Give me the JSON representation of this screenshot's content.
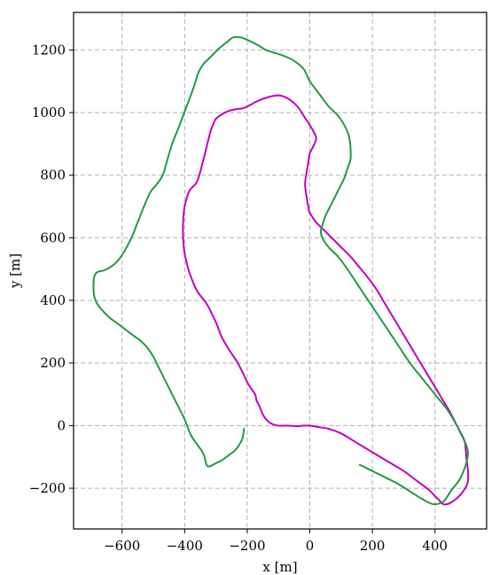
{
  "chart_data": {
    "type": "line",
    "xlabel": "x [m]",
    "ylabel": "y [m]",
    "xlim": [
      -755,
      565
    ],
    "ylim": [
      -330,
      1320
    ],
    "grid": true,
    "xticks": [
      -600,
      -400,
      -200,
      0,
      200,
      400
    ],
    "yticks": [
      -200,
      0,
      200,
      400,
      600,
      800,
      1000,
      1200
    ],
    "tick_labels_x": [
      "−600",
      "−400",
      "−200",
      "0",
      "200",
      "400"
    ],
    "tick_labels_y": [
      "−200",
      "0",
      "200",
      "400",
      "600",
      "800",
      "1000",
      "1200"
    ],
    "series": [
      {
        "color": "#c000c0",
        "x": [
          0,
          30,
          60,
          100,
          150,
          200,
          250,
          300,
          340,
          380,
          410,
          430,
          460,
          490,
          505,
          505,
          500,
          495,
          480,
          450,
          420,
          390,
          360,
          330,
          300,
          270,
          240,
          210,
          180,
          155,
          130,
          100,
          70,
          45,
          20,
          0,
          -5,
          -10,
          -15,
          -10,
          -5,
          0,
          10,
          20,
          0,
          -20,
          -40,
          -70,
          -100,
          -130,
          -160,
          -180,
          -210,
          -240,
          -260,
          -280,
          -300,
          -310,
          -320,
          -340,
          -360,
          -385,
          -400,
          -405,
          -405,
          -400,
          -385,
          -360,
          -330,
          -300,
          -280,
          -250,
          -230,
          -210,
          -195,
          -175,
          -170,
          -160,
          -150,
          -135,
          -120,
          -100,
          -70,
          -40,
          -20,
          0
        ],
        "y": [
          0,
          -5,
          -10,
          -25,
          -55,
          -85,
          -115,
          -145,
          -175,
          -205,
          -235,
          -252,
          -240,
          -210,
          -180,
          -140,
          -100,
          -50,
          -20,
          40,
          90,
          140,
          190,
          240,
          290,
          340,
          390,
          440,
          480,
          510,
          540,
          570,
          600,
          625,
          650,
          680,
          700,
          730,
          770,
          810,
          840,
          870,
          890,
          920,
          960,
          990,
          1020,
          1045,
          1055,
          1050,
          1040,
          1030,
          1015,
          1010,
          1005,
          995,
          980,
          960,
          930,
          850,
          780,
          750,
          700,
          650,
          600,
          550,
          490,
          430,
          390,
          330,
          280,
          230,
          200,
          160,
          130,
          100,
          80,
          60,
          35,
          15,
          5,
          0,
          0,
          -2,
          0,
          0
        ]
      },
      {
        "color": "#229944",
        "x": [
          -210,
          -215,
          -225,
          -240,
          -260,
          -280,
          -300,
          -320,
          -330,
          -340,
          -360,
          -380,
          -400,
          -420,
          -440,
          -460,
          -480,
          -500,
          -520,
          -540,
          -560,
          -580,
          -600,
          -620,
          -640,
          -660,
          -680,
          -690,
          -690,
          -680,
          -660,
          -640,
          -620,
          -600,
          -570,
          -550,
          -530,
          -510,
          -490,
          -470,
          -455,
          -440,
          -420,
          -405,
          -390,
          -375,
          -365,
          -355,
          -340,
          -325,
          -310,
          -290,
          -265,
          -245,
          -220,
          -195,
          -165,
          -140,
          -110,
          -80,
          -50,
          -20,
          0,
          30,
          60,
          90,
          110,
          125,
          130,
          130,
          120,
          110,
          95,
          80,
          65,
          50,
          40,
          35,
          40,
          60,
          90,
          120,
          160,
          200,
          240,
          280,
          320,
          360,
          400,
          440,
          470,
          490,
          505,
          500,
          480,
          450,
          430,
          410,
          390,
          360,
          320,
          280,
          240,
          200,
          160
        ],
        "y": [
          -10,
          -40,
          -60,
          -80,
          -95,
          -110,
          -120,
          -130,
          -125,
          -90,
          -60,
          -30,
          20,
          60,
          100,
          140,
          180,
          220,
          250,
          270,
          285,
          300,
          315,
          330,
          345,
          365,
          390,
          420,
          470,
          490,
          495,
          505,
          520,
          545,
          600,
          650,
          700,
          745,
          770,
          800,
          850,
          900,
          950,
          990,
          1030,
          1070,
          1100,
          1130,
          1155,
          1170,
          1185,
          1205,
          1225,
          1240,
          1240,
          1230,
          1215,
          1200,
          1190,
          1180,
          1165,
          1140,
          1100,
          1060,
          1020,
          990,
          960,
          925,
          890,
          850,
          820,
          790,
          760,
          730,
          700,
          670,
          640,
          620,
          600,
          570,
          540,
          500,
          440,
          380,
          320,
          260,
          200,
          150,
          100,
          50,
          0,
          -40,
          -80,
          -120,
          -170,
          -210,
          -240,
          -250,
          -250,
          -235,
          -210,
          -185,
          -165,
          -145,
          -125
        ]
      }
    ]
  }
}
